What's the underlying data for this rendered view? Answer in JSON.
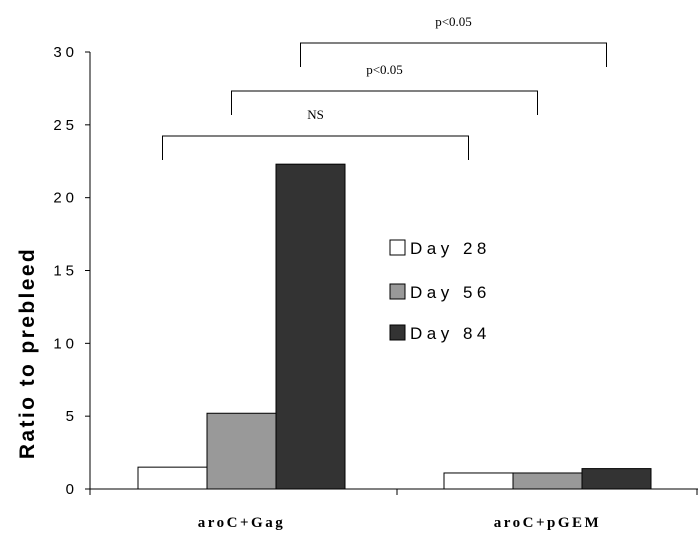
{
  "chart_data": {
    "type": "bar",
    "categories": [
      "aroC+Gag",
      "aroC+pGEM"
    ],
    "series": [
      {
        "name": "Day 28",
        "values": [
          1.5,
          1.1
        ],
        "color": "#ffffff"
      },
      {
        "name": "Day 56",
        "values": [
          5.2,
          1.1
        ],
        "color": "#999999"
      },
      {
        "name": "Day 84",
        "values": [
          22.3,
          1.4
        ],
        "color": "#333333"
      }
    ],
    "ylabel": "Ratio to prebleed",
    "ylim": [
      0,
      30
    ],
    "yticks": [
      "0",
      "5",
      "10",
      "15",
      "20",
      "25",
      "30"
    ],
    "legend_position": "center-right",
    "grid": false,
    "brackets": [
      {
        "label": "NS",
        "from": [
          0,
          "Day 28"
        ],
        "to": [
          1,
          "Day 28"
        ]
      },
      {
        "label": "p<0.05",
        "from": [
          0,
          "Day 56"
        ],
        "to": [
          1,
          "Day 56"
        ]
      },
      {
        "label": "p<0.05",
        "from": [
          0,
          "Day 84"
        ],
        "to": [
          1,
          "Day 84"
        ]
      }
    ]
  }
}
